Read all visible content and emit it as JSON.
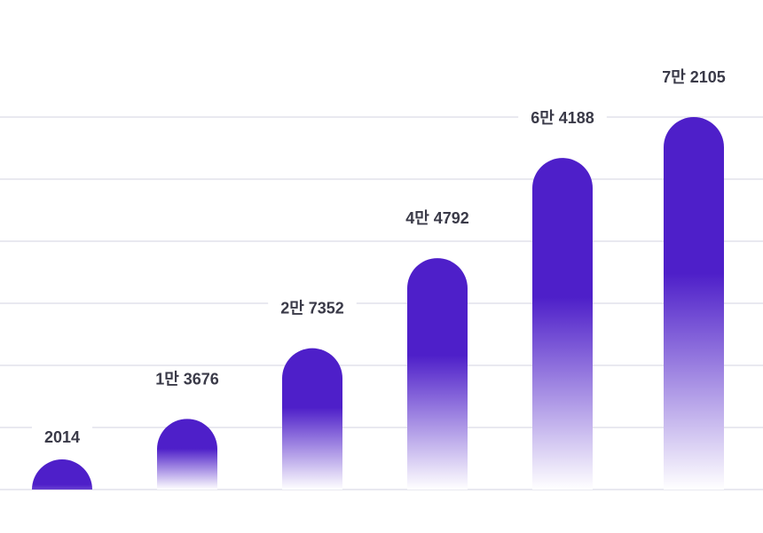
{
  "chart_data": {
    "type": "bar",
    "values": [
      2014,
      13676,
      27352,
      44792,
      64188,
      72105
    ],
    "value_labels": [
      "2014",
      "1만 3676",
      "2만 7352",
      "4만 4792",
      "6만 4188",
      "7만 2105"
    ],
    "title": "",
    "xlabel": "",
    "ylabel": "",
    "ylim": [
      0,
      72105
    ],
    "grid": true,
    "colors": {
      "bar_top": "#4e1fc9",
      "bar_fade": "#ffffff",
      "grid": "#dcdce8",
      "label": "#3a3a48"
    }
  }
}
